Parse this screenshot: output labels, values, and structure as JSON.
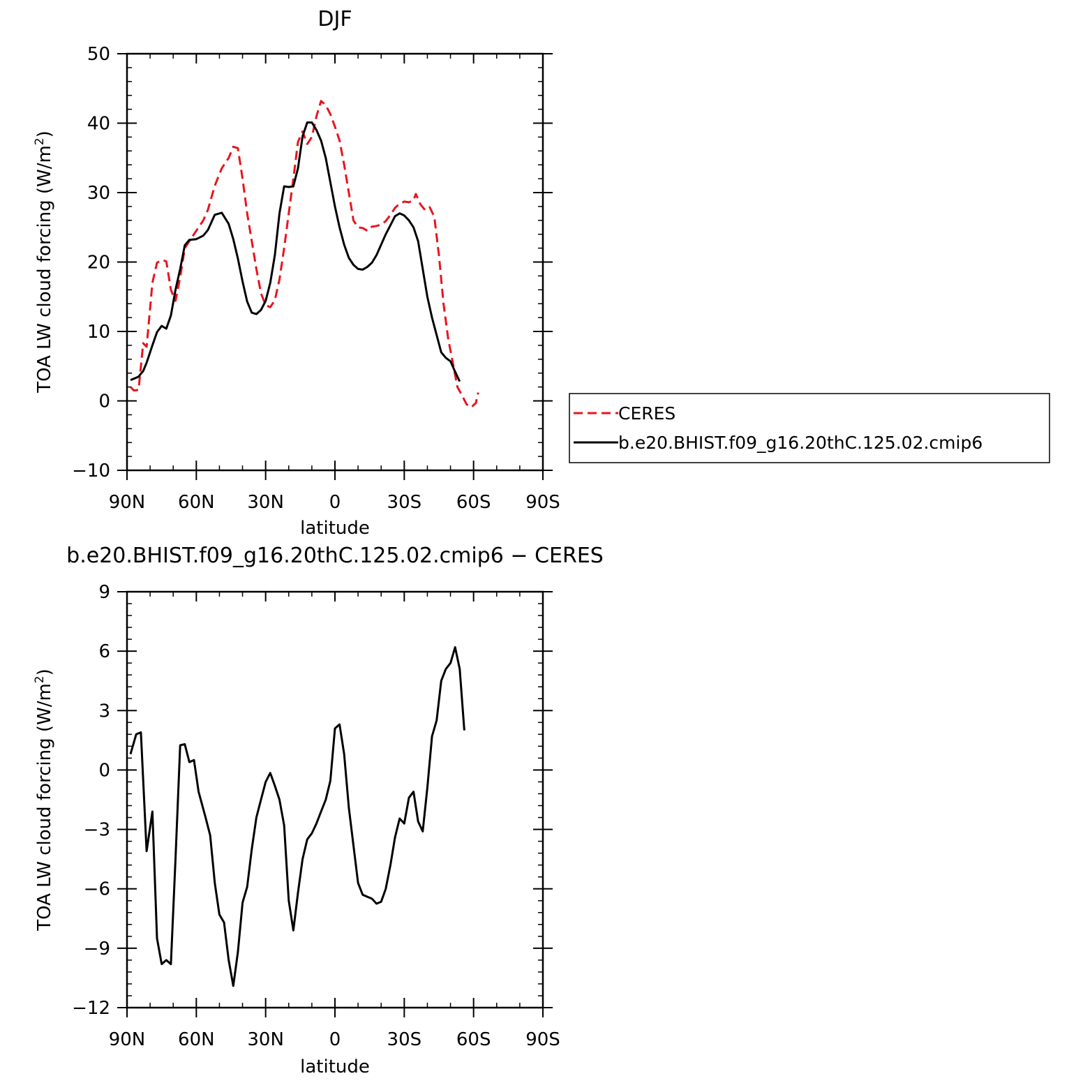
{
  "chart_data": [
    {
      "type": "line",
      "title": "DJF",
      "xlabel": "latitude",
      "ylabel": "TOA LW cloud forcing (W/m²)",
      "ylabel_main": "TOA LW cloud forcing (W/m",
      "ylabel_sup": "2",
      "ylabel_tail": ")",
      "xlim": [
        90,
        -90
      ],
      "ylim": [
        -10,
        50
      ],
      "xticks": [
        90,
        60,
        30,
        0,
        -30,
        -60,
        -90
      ],
      "xtick_labels": [
        "90N",
        "60N",
        "30N",
        "0",
        "30S",
        "60S",
        "90S"
      ],
      "yticks": [
        -10,
        0,
        10,
        20,
        30,
        40,
        50
      ],
      "ytick_labels": [
        "−10",
        "0",
        "10",
        "20",
        "30",
        "40",
        "50"
      ],
      "series": [
        {
          "name": "CERES",
          "color": "#e8141e",
          "dash": "dashed",
          "points": [
            [
              88.5,
              2.0
            ],
            [
              87,
              1.5
            ],
            [
              85,
              1.6
            ],
            [
              83,
              8.3
            ],
            [
              81.5,
              7.8
            ],
            [
              79,
              17.0
            ],
            [
              77,
              19.9
            ],
            [
              75,
              20.3
            ],
            [
              73,
              20.1
            ],
            [
              71,
              16.0
            ],
            [
              69,
              14.4
            ],
            [
              67,
              17.8
            ],
            [
              65,
              22.0
            ],
            [
              63,
              23.0
            ],
            [
              60,
              24.5
            ],
            [
              57,
              26.0
            ],
            [
              55,
              27.5
            ],
            [
              52,
              31.0
            ],
            [
              49,
              33.5
            ],
            [
              46,
              35.0
            ],
            [
              44,
              36.6
            ],
            [
              42,
              36.4
            ],
            [
              40,
              32.0
            ],
            [
              38,
              27.0
            ],
            [
              36,
              23.0
            ],
            [
              34,
              19.0
            ],
            [
              32,
              15.5
            ],
            [
              30,
              13.8
            ],
            [
              28,
              13.5
            ],
            [
              26,
              14.5
            ],
            [
              24,
              17.5
            ],
            [
              22,
              22.0
            ],
            [
              20,
              27.0
            ],
            [
              18,
              32.0
            ],
            [
              16,
              37.3
            ],
            [
              14,
              38.8
            ],
            [
              12,
              37.0
            ],
            [
              10,
              38.0
            ],
            [
              8,
              41.0
            ],
            [
              6,
              43.2
            ],
            [
              4,
              42.6
            ],
            [
              2,
              41.3
            ],
            [
              0,
              39.5
            ],
            [
              -2,
              37.5
            ],
            [
              -4,
              34.0
            ],
            [
              -6,
              30.0
            ],
            [
              -8,
              26.0
            ],
            [
              -10,
              25.0
            ],
            [
              -12,
              24.9
            ],
            [
              -14,
              24.5
            ],
            [
              -16,
              25.1
            ],
            [
              -18,
              25.2
            ],
            [
              -20,
              25.4
            ],
            [
              -22,
              25.9
            ],
            [
              -24,
              26.8
            ],
            [
              -26,
              27.8
            ],
            [
              -28,
              28.4
            ],
            [
              -30,
              28.7
            ],
            [
              -32,
              28.6
            ],
            [
              -34,
              28.9
            ],
            [
              -35,
              29.8
            ],
            [
              -37,
              28.3
            ],
            [
              -39,
              27.5
            ],
            [
              -41,
              27.9
            ],
            [
              -43,
              26.5
            ],
            [
              -45,
              21.0
            ],
            [
              -47,
              14.0
            ],
            [
              -49,
              9.0
            ],
            [
              -51,
              5.5
            ],
            [
              -53,
              2.0
            ],
            [
              -55,
              0.8
            ],
            [
              -57,
              -0.5
            ],
            [
              -59,
              -0.9
            ],
            [
              -61,
              -0.3
            ],
            [
              -62,
              1.2
            ]
          ]
        },
        {
          "name": "b.e20.BHIST.f09_g16.20thC.125.02.cmip6",
          "color": "#000000",
          "dash": "solid",
          "points": [
            [
              88.5,
              3.0
            ],
            [
              87,
              3.2
            ],
            [
              85,
              3.5
            ],
            [
              83,
              4.3
            ],
            [
              81.5,
              5.5
            ],
            [
              79,
              8.0
            ],
            [
              77,
              9.9
            ],
            [
              75,
              10.8
            ],
            [
              73,
              10.4
            ],
            [
              71,
              12.3
            ],
            [
              69,
              16.0
            ],
            [
              67,
              19.0
            ],
            [
              65,
              22.4
            ],
            [
              63,
              23.2
            ],
            [
              60,
              23.3
            ],
            [
              57,
              23.8
            ],
            [
              55,
              24.6
            ],
            [
              52,
              26.8
            ],
            [
              49,
              27.1
            ],
            [
              46,
              25.5
            ],
            [
              44,
              23.3
            ],
            [
              42,
              20.5
            ],
            [
              40,
              17.2
            ],
            [
              38,
              14.3
            ],
            [
              36,
              12.7
            ],
            [
              34,
              12.5
            ],
            [
              32,
              13.1
            ],
            [
              30,
              14.4
            ],
            [
              28,
              17.0
            ],
            [
              26,
              21.0
            ],
            [
              24,
              27.0
            ],
            [
              22,
              30.9
            ],
            [
              20,
              30.8
            ],
            [
              18,
              30.9
            ],
            [
              16,
              33.5
            ],
            [
              14,
              38.1
            ],
            [
              12,
              40.1
            ],
            [
              10,
              40.1
            ],
            [
              8,
              39.0
            ],
            [
              6,
              37.5
            ],
            [
              4,
              35.0
            ],
            [
              2,
              31.5
            ],
            [
              0,
              28.0
            ],
            [
              -2,
              25.0
            ],
            [
              -4,
              22.5
            ],
            [
              -6,
              20.6
            ],
            [
              -8,
              19.6
            ],
            [
              -10,
              19.0
            ],
            [
              -12,
              18.9
            ],
            [
              -14,
              19.3
            ],
            [
              -16,
              19.9
            ],
            [
              -18,
              21.0
            ],
            [
              -20,
              22.5
            ],
            [
              -22,
              24.0
            ],
            [
              -24,
              25.3
            ],
            [
              -26,
              26.6
            ],
            [
              -28,
              27.0
            ],
            [
              -30,
              26.7
            ],
            [
              -32,
              26.0
            ],
            [
              -34,
              25.0
            ],
            [
              -36,
              23.0
            ],
            [
              -38,
              19.0
            ],
            [
              -40,
              15.0
            ],
            [
              -42,
              12.0
            ],
            [
              -44,
              9.5
            ],
            [
              -46,
              7.0
            ],
            [
              -48,
              6.2
            ],
            [
              -50,
              5.7
            ],
            [
              -52,
              4.2
            ],
            [
              -54,
              2.8
            ]
          ]
        }
      ],
      "legend_placement": "outside-right"
    },
    {
      "type": "line",
      "title": "b.e20.BHIST.f09_g16.20thC.125.02.cmip6 − CERES",
      "xlabel": "latitude",
      "ylabel": "TOA LW cloud forcing (W/m²)",
      "ylabel_main": "TOA LW cloud forcing (W/m",
      "ylabel_sup": "2",
      "ylabel_tail": ")",
      "xlim": [
        90,
        -90
      ],
      "ylim": [
        -12,
        9
      ],
      "xticks": [
        90,
        60,
        30,
        0,
        -30,
        -60,
        -90
      ],
      "xtick_labels": [
        "90N",
        "60N",
        "30N",
        "0",
        "30S",
        "60S",
        "90S"
      ],
      "yticks": [
        -12,
        -9,
        -6,
        -3,
        0,
        3,
        6,
        9
      ],
      "ytick_labels": [
        "−12",
        "−9",
        "−6",
        "−3",
        "0",
        "3",
        "6",
        "9"
      ],
      "series": [
        {
          "color": "#000000",
          "dash": "solid",
          "points": [
            [
              88.5,
              0.8
            ],
            [
              86,
              1.8
            ],
            [
              84,
              1.9
            ],
            [
              81.5,
              -4.1
            ],
            [
              79,
              -2.1
            ],
            [
              77,
              -8.5
            ],
            [
              75,
              -9.8
            ],
            [
              73,
              -9.6
            ],
            [
              71,
              -9.8
            ],
            [
              69,
              -4.5
            ],
            [
              67,
              1.25
            ],
            [
              65,
              1.3
            ],
            [
              63,
              0.4
            ],
            [
              61,
              0.5
            ],
            [
              59,
              -1.1
            ],
            [
              56,
              -2.4
            ],
            [
              54,
              -3.3
            ],
            [
              52,
              -5.7
            ],
            [
              50,
              -7.3
            ],
            [
              48,
              -7.7
            ],
            [
              46,
              -9.6
            ],
            [
              44,
              -10.9
            ],
            [
              42,
              -9.2
            ],
            [
              40,
              -6.7
            ],
            [
              38,
              -5.9
            ],
            [
              36,
              -4.0
            ],
            [
              34,
              -2.4
            ],
            [
              32,
              -1.5
            ],
            [
              30,
              -0.6
            ],
            [
              28,
              -0.15
            ],
            [
              26,
              -0.8
            ],
            [
              24,
              -1.5
            ],
            [
              22,
              -2.8
            ],
            [
              20,
              -6.6
            ],
            [
              18,
              -8.1
            ],
            [
              16,
              -6.2
            ],
            [
              14,
              -4.5
            ],
            [
              12,
              -3.5
            ],
            [
              10,
              -3.2
            ],
            [
              8,
              -2.7
            ],
            [
              6,
              -2.1
            ],
            [
              4,
              -1.5
            ],
            [
              2,
              -0.55
            ],
            [
              0,
              2.1
            ],
            [
              -2,
              2.3
            ],
            [
              -4,
              0.8
            ],
            [
              -6,
              -1.9
            ],
            [
              -8,
              -3.8
            ],
            [
              -10,
              -5.7
            ],
            [
              -12,
              -6.3
            ],
            [
              -14,
              -6.4
            ],
            [
              -16,
              -6.5
            ],
            [
              -18,
              -6.75
            ],
            [
              -20,
              -6.65
            ],
            [
              -22,
              -6.0
            ],
            [
              -24,
              -4.8
            ],
            [
              -26,
              -3.4
            ],
            [
              -28,
              -2.45
            ],
            [
              -30,
              -2.7
            ],
            [
              -32,
              -1.4
            ],
            [
              -34,
              -1.1
            ],
            [
              -36,
              -2.6
            ],
            [
              -38,
              -3.1
            ],
            [
              -40,
              -0.9
            ],
            [
              -42,
              1.7
            ],
            [
              -44,
              2.5
            ],
            [
              -46,
              4.5
            ],
            [
              -48,
              5.1
            ],
            [
              -50,
              5.4
            ],
            [
              -52,
              6.2
            ],
            [
              -54,
              5.1
            ],
            [
              -56,
              2.0
            ]
          ]
        }
      ]
    }
  ]
}
